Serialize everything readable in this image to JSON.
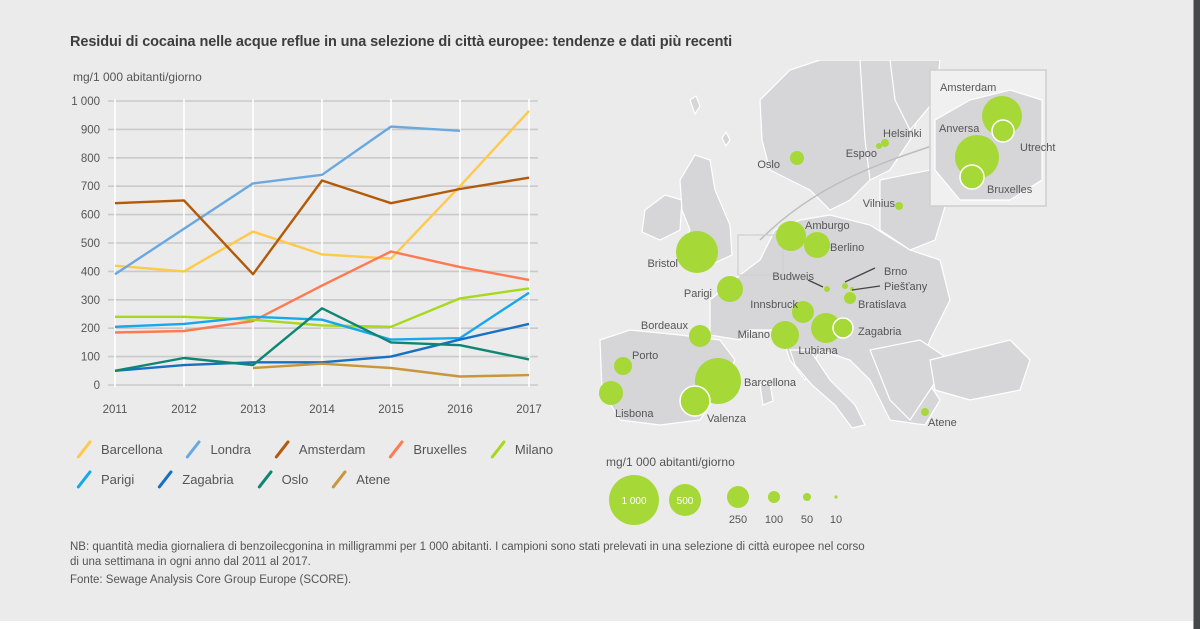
{
  "title": "Residui di cocaina nelle acque reflue in una selezione di città europee: tendenze e dati più recenti",
  "unit_label": "mg/1 000 abitanti/giorno",
  "chart_data": {
    "type": "line",
    "title": "Residui di cocaina nelle acque reflue in una selezione di città europee: tendenze e dati più recenti",
    "xlabel": "",
    "ylabel": "mg/1 000 abitanti/giorno",
    "x": [
      2011,
      2012,
      2013,
      2014,
      2015,
      2016,
      2017
    ],
    "x_tick_labels": [
      "2011",
      "2012",
      "2013",
      "2014",
      "2015",
      "2016",
      "2017"
    ],
    "ylim": [
      0,
      1000
    ],
    "y_ticks": [
      0,
      100,
      200,
      300,
      400,
      500,
      600,
      700,
      800,
      900,
      1000
    ],
    "y_tick_labels": [
      "0",
      "100",
      "200",
      "300",
      "400",
      "500",
      "600",
      "700",
      "800",
      "900",
      "1 000"
    ],
    "grid": true,
    "legend_position": "bottom",
    "series": [
      {
        "name": "Barcellona",
        "color": "#ffc94a",
        "values": [
          420,
          400,
          540,
          460,
          445,
          700,
          965
        ]
      },
      {
        "name": "Londra",
        "color": "#6aa8e0",
        "values": [
          390,
          550,
          710,
          740,
          910,
          895,
          null
        ]
      },
      {
        "name": "Amsterdam",
        "color": "#b35a0a",
        "values": [
          640,
          650,
          390,
          720,
          640,
          690,
          730
        ]
      },
      {
        "name": "Bruxelles",
        "color": "#ff7a50",
        "values": [
          185,
          190,
          225,
          350,
          470,
          415,
          370
        ]
      },
      {
        "name": "Milano",
        "color": "#a8d81a",
        "values": [
          240,
          240,
          230,
          210,
          205,
          305,
          340
        ]
      },
      {
        "name": "Parigi",
        "color": "#17a8ec",
        "values": [
          205,
          215,
          240,
          230,
          160,
          165,
          325
        ]
      },
      {
        "name": "Zagabria",
        "color": "#1770c2",
        "values": [
          50,
          70,
          80,
          80,
          100,
          160,
          215
        ]
      },
      {
        "name": "Oslo",
        "color": "#0f8673",
        "values": [
          50,
          95,
          70,
          270,
          150,
          140,
          90
        ]
      },
      {
        "name": "Atene",
        "color": "#c8963c",
        "values": [
          null,
          null,
          60,
          75,
          60,
          30,
          35
        ]
      }
    ]
  },
  "legend_rows": [
    [
      0,
      1,
      2,
      3,
      4
    ],
    [
      5,
      6,
      7,
      8
    ]
  ],
  "map": {
    "bubble_color": "#a6d838",
    "cities": [
      {
        "name": "Oslo"
      },
      {
        "name": "Helsinki"
      },
      {
        "name": "Espoo"
      },
      {
        "name": "Vilnius"
      },
      {
        "name": "Amburgo"
      },
      {
        "name": "Berlino"
      },
      {
        "name": "Bristol"
      },
      {
        "name": "Parigi"
      },
      {
        "name": "Budweis"
      },
      {
        "name": "Brno"
      },
      {
        "name": "Piešťany"
      },
      {
        "name": "Bratislava"
      },
      {
        "name": "Innsbruck"
      },
      {
        "name": "Milano"
      },
      {
        "name": "Lubiana"
      },
      {
        "name": "Zagabria"
      },
      {
        "name": "Bordeaux"
      },
      {
        "name": "Porto"
      },
      {
        "name": "Lisbona"
      },
      {
        "name": "Barcellona"
      },
      {
        "name": "Valenza"
      },
      {
        "name": "Atene"
      }
    ],
    "inset_cities": [
      {
        "name": "Amsterdam"
      },
      {
        "name": "Anversa"
      },
      {
        "name": "Utrecht"
      },
      {
        "name": "Bruxelles"
      }
    ],
    "size_legend": {
      "title": "mg/1 000 abitanti/giorno",
      "values": [
        1000,
        500,
        250,
        100,
        50,
        10
      ],
      "labels": [
        "1 000",
        "500",
        "250",
        "100",
        "50",
        "10"
      ]
    }
  },
  "notes": {
    "nb": "NB: quantità media giornaliera di benzoilecgonina in milligrammi per 1 000 abitanti. I campioni sono stati prelevati in una selezione di città europee nel corso di una settimana in ogni anno dal 2011 al 2017.",
    "source": "Fonte: Sewage Analysis Core Group Europe (SCORE)."
  }
}
